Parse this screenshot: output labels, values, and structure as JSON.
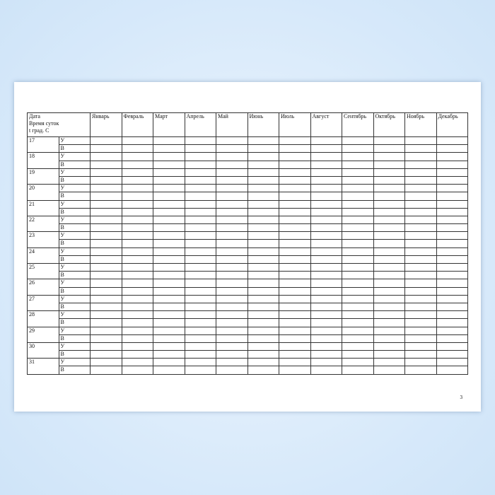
{
  "header": {
    "first_col": [
      "Дата",
      "Время суток",
      "t град. С"
    ],
    "months": [
      "Январь",
      "Февраль",
      "Март",
      "Апрель",
      "Май",
      "Июнь",
      "Июль",
      "Август",
      "Сентябрь",
      "Октябрь",
      "Ноябрь",
      "Декабрь"
    ]
  },
  "days": [
    "17",
    "18",
    "19",
    "20",
    "21",
    "22",
    "23",
    "24",
    "25",
    "26",
    "27",
    "28",
    "29",
    "30",
    "31"
  ],
  "time_labels": [
    "У",
    "В"
  ],
  "page_number": "3"
}
